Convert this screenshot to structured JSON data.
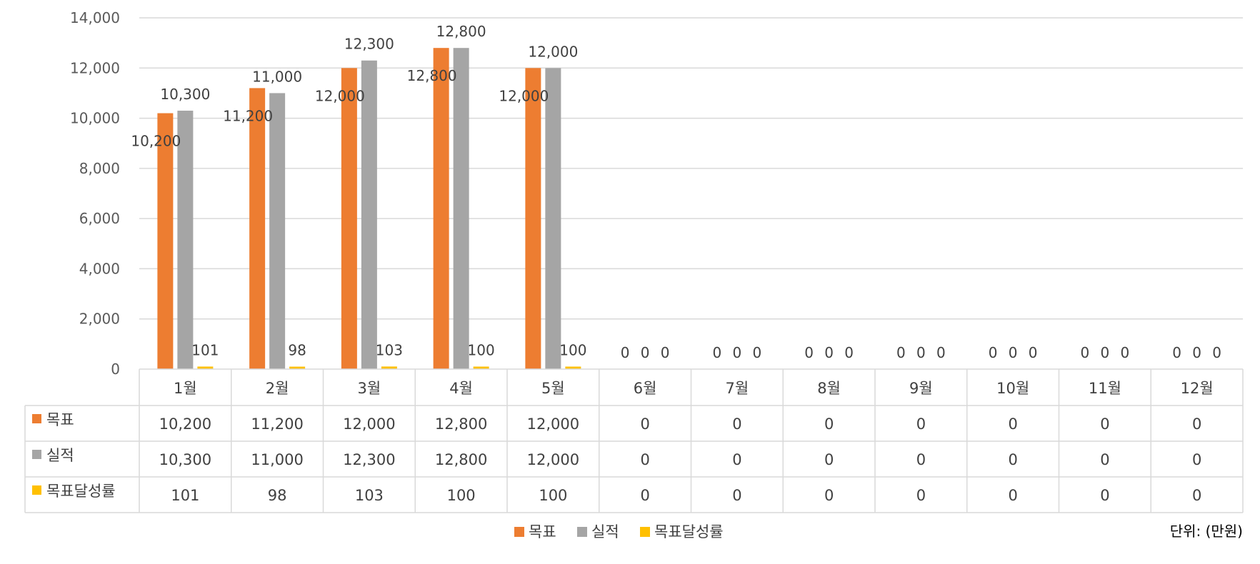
{
  "chart_data": {
    "type": "bar",
    "categories": [
      "1월",
      "2월",
      "3월",
      "4월",
      "5월",
      "6월",
      "7월",
      "8월",
      "9월",
      "10월",
      "11월",
      "12월"
    ],
    "series": [
      {
        "name": "목표",
        "color": "#ED7D31",
        "values": [
          10200,
          11200,
          12000,
          12800,
          12000,
          0,
          0,
          0,
          0,
          0,
          0,
          0
        ]
      },
      {
        "name": "실적",
        "color": "#A5A5A5",
        "values": [
          10300,
          11000,
          12300,
          12800,
          12000,
          0,
          0,
          0,
          0,
          0,
          0,
          0
        ]
      },
      {
        "name": "목표달성률",
        "color": "#FFC000",
        "values": [
          101,
          98,
          103,
          100,
          100,
          0,
          0,
          0,
          0,
          0,
          0,
          0
        ]
      }
    ],
    "ylim": [
      0,
      14000
    ],
    "yticks": [
      0,
      2000,
      4000,
      6000,
      8000,
      10000,
      12000,
      14000
    ],
    "grid": true,
    "data_table": true,
    "legend_position": "bottom",
    "unit_note": "단위: (만원)"
  }
}
